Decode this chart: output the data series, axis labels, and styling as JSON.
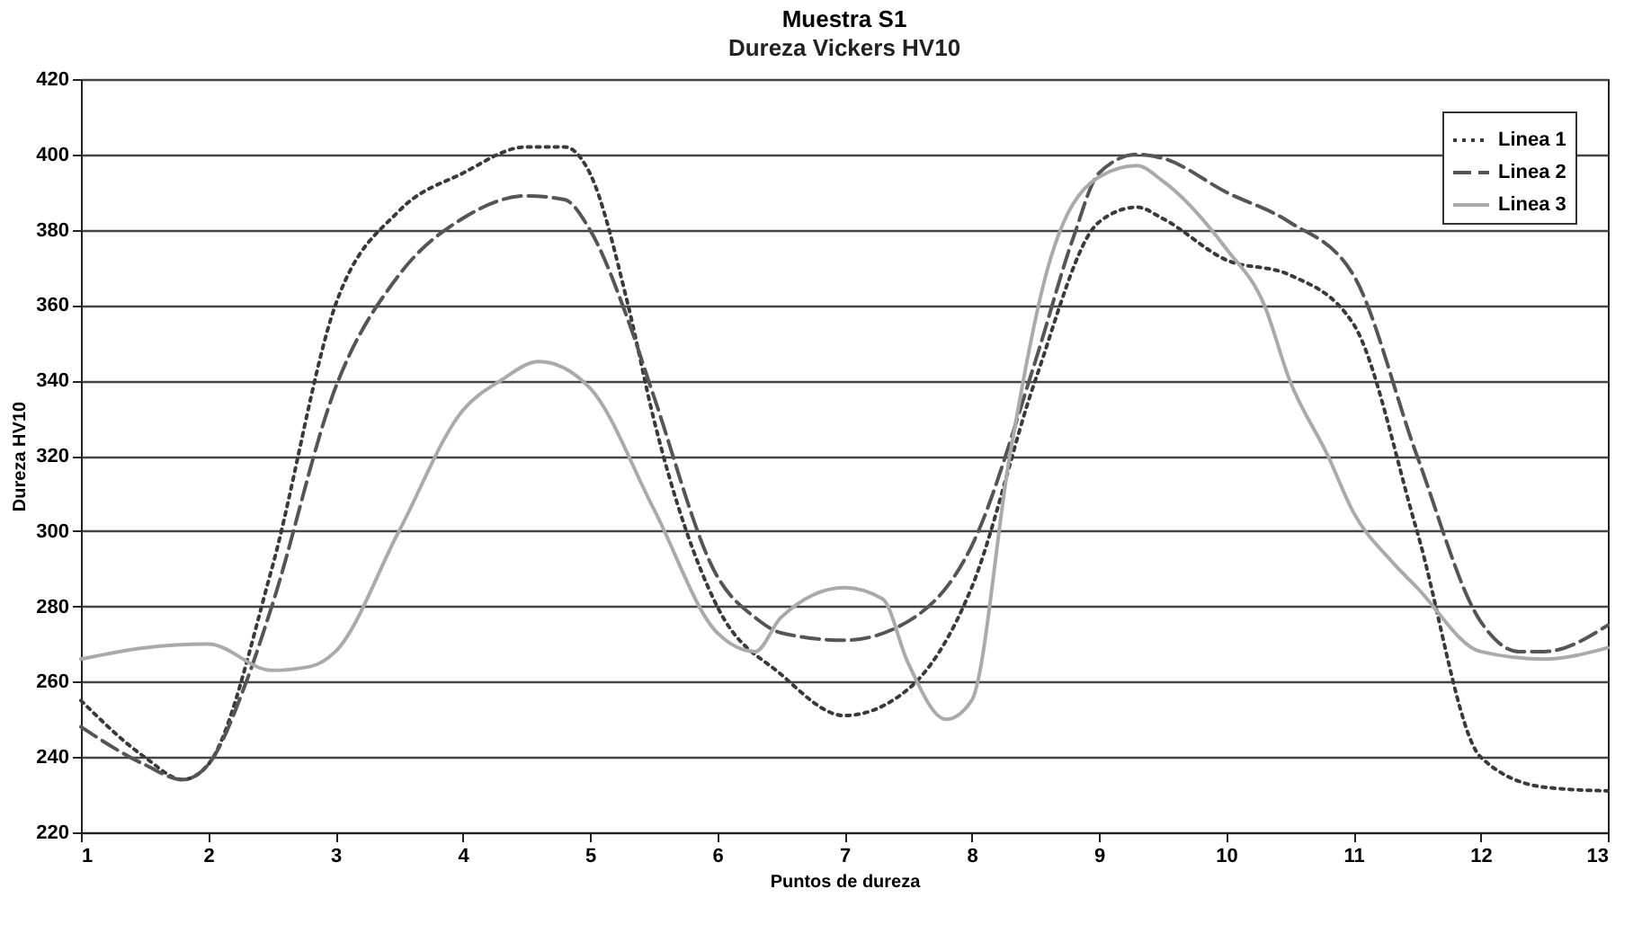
{
  "chart_data": {
    "type": "line",
    "title": "Muestra S1",
    "subtitle": "Dureza Vickers HV10",
    "xlabel": "Puntos de dureza",
    "ylabel": "Dureza HV10",
    "xlim": [
      1,
      13
    ],
    "xticks": [
      1,
      2,
      3,
      4,
      5,
      6,
      7,
      8,
      9,
      10,
      11,
      12,
      13
    ],
    "ylim": [
      220,
      420
    ],
    "yticks": [
      220,
      240,
      260,
      280,
      300,
      320,
      340,
      360,
      380,
      400,
      420
    ],
    "grid": "y",
    "legend": "top right",
    "marker": "none",
    "series": [
      {
        "name": "Linea 1",
        "color": "#3a3a3a",
        "line_style": "dotted",
        "x": [
          1,
          1.5,
          1.8,
          2,
          2.5,
          3,
          3.5,
          4,
          4.5,
          4.8,
          5,
          5.3,
          5.5,
          6,
          6.5,
          7,
          7.5,
          8,
          8.5,
          9,
          9.3,
          9.5,
          10,
          10.5,
          11,
          11.5,
          12,
          12.5,
          13
        ],
        "values": [
          255,
          240,
          234,
          238,
          290,
          360,
          385,
          395,
          402,
          402,
          395,
          360,
          330,
          280,
          262,
          251,
          258,
          285,
          340,
          382,
          386,
          383,
          372,
          368,
          355,
          300,
          240,
          232,
          231
        ]
      },
      {
        "name": "Linea 2",
        "color": "#555555",
        "line_style": "dashed",
        "x": [
          1,
          1.5,
          1.8,
          2,
          2.3,
          2.5,
          3,
          3.5,
          4,
          4.5,
          4.8,
          5,
          5.3,
          5.5,
          6,
          6.3,
          6.5,
          7,
          7.5,
          8,
          8.5,
          8.8,
          9,
          9.3,
          9.5,
          10,
          10.5,
          11,
          11.5,
          12,
          12.3,
          12.5,
          13
        ],
        "values": [
          248,
          238,
          234,
          238,
          260,
          280,
          338,
          368,
          383,
          389,
          388,
          380,
          356,
          336,
          288,
          277,
          273,
          271,
          276,
          296,
          345,
          378,
          395,
          400,
          399,
          390,
          382,
          368,
          320,
          276,
          268,
          268,
          275
        ]
      },
      {
        "name": "Linea 3",
        "color": "#aaaaaa",
        "line_style": "solid",
        "x": [
          1,
          1.5,
          2,
          2.5,
          2.8,
          3,
          3.5,
          4,
          4.3,
          4.6,
          5,
          5.5,
          6,
          6.3,
          6.5,
          7,
          7.3,
          7.5,
          7.8,
          8,
          8.3,
          8.6,
          9,
          9.3,
          9.5,
          10,
          10.3,
          10.5,
          10.8,
          11,
          11.3,
          11.5,
          12,
          12.5,
          13
        ],
        "values": [
          266,
          269,
          270,
          263,
          264,
          268,
          300,
          332,
          340,
          345,
          338,
          306,
          273,
          268,
          277,
          285,
          282,
          265,
          250,
          255,
          320,
          370,
          394,
          397,
          393,
          375,
          360,
          340,
          320,
          305,
          292,
          285,
          268,
          266,
          269
        ]
      }
    ]
  }
}
